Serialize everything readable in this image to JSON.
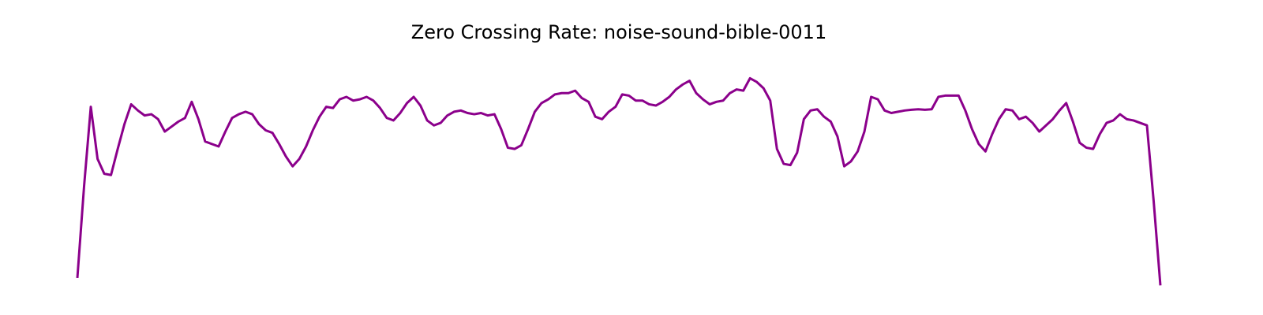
{
  "chart_data": {
    "type": "line",
    "title": "Zero Crossing Rate: noise-sound-bible-0011",
    "xlabel": "",
    "ylabel": "",
    "axes_visible": false,
    "grid": false,
    "legend": "none",
    "color": "#8b008b",
    "ylim": [
      0,
      1
    ],
    "series": [
      {
        "values": [
          0.07,
          0.44,
          0.76,
          0.55,
          0.49,
          0.485,
          0.59,
          0.69,
          0.77,
          0.745,
          0.725,
          0.73,
          0.71,
          0.66,
          0.68,
          0.7,
          0.715,
          0.78,
          0.71,
          0.62,
          0.61,
          0.6,
          0.66,
          0.715,
          0.73,
          0.74,
          0.73,
          0.69,
          0.665,
          0.655,
          0.61,
          0.56,
          0.52,
          0.55,
          0.6,
          0.665,
          0.72,
          0.76,
          0.755,
          0.79,
          0.8,
          0.785,
          0.79,
          0.8,
          0.785,
          0.755,
          0.715,
          0.705,
          0.735,
          0.775,
          0.8,
          0.765,
          0.705,
          0.685,
          0.695,
          0.725,
          0.74,
          0.745,
          0.735,
          0.73,
          0.735,
          0.725,
          0.73,
          0.67,
          0.595,
          0.59,
          0.605,
          0.67,
          0.74,
          0.775,
          0.79,
          0.81,
          0.815,
          0.815,
          0.825,
          0.795,
          0.78,
          0.72,
          0.71,
          0.74,
          0.76,
          0.81,
          0.805,
          0.785,
          0.785,
          0.77,
          0.765,
          0.78,
          0.8,
          0.83,
          0.85,
          0.865,
          0.815,
          0.79,
          0.77,
          0.78,
          0.785,
          0.815,
          0.83,
          0.825,
          0.875,
          0.86,
          0.835,
          0.785,
          0.59,
          0.53,
          0.525,
          0.575,
          0.71,
          0.745,
          0.75,
          0.72,
          0.7,
          0.64,
          0.52,
          0.54,
          0.58,
          0.66,
          0.8,
          0.79,
          0.745,
          0.735,
          0.74,
          0.745,
          0.748,
          0.75,
          0.748,
          0.75,
          0.8,
          0.805,
          0.805,
          0.805,
          0.745,
          0.67,
          0.61,
          0.58,
          0.65,
          0.71,
          0.75,
          0.745,
          0.71,
          0.72,
          0.695,
          0.66,
          0.685,
          0.71,
          0.745,
          0.775,
          0.7,
          0.615,
          0.595,
          0.59,
          0.65,
          0.695,
          0.705,
          0.73,
          0.71,
          0.705,
          0.695,
          0.685,
          0.38,
          0.04
        ]
      }
    ]
  }
}
